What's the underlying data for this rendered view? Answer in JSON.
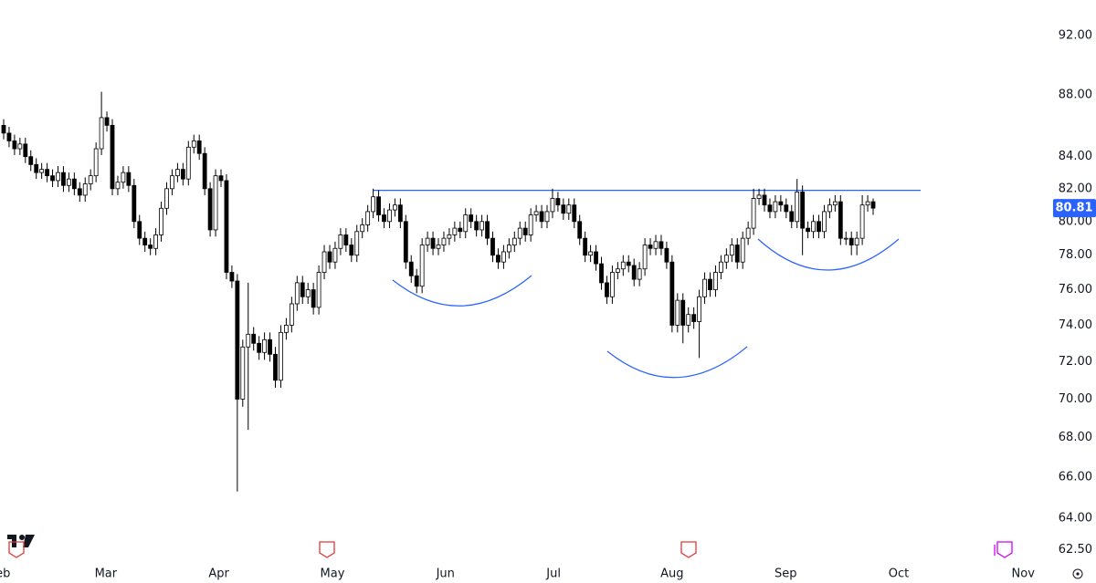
{
  "chart_data": {
    "type": "candlestick",
    "log_scale": true,
    "up_color": "#ffffff",
    "down_color": "#000000",
    "outline_color": "#000000",
    "line_color": "#2962ff",
    "tag_color": "#2962ff",
    "ylim": [
      62.1,
      94.5
    ],
    "yticks": [
      {
        "value": 92,
        "label": "92.00"
      },
      {
        "value": 88,
        "label": "88.00"
      },
      {
        "value": 84,
        "label": "84.00"
      },
      {
        "value": 82,
        "label": "82.00"
      },
      {
        "value": 80,
        "label": "80.00"
      },
      {
        "value": 78,
        "label": "78.00"
      },
      {
        "value": 76,
        "label": "76.00"
      },
      {
        "value": 74,
        "label": "74.00"
      },
      {
        "value": 72,
        "label": "72.00"
      },
      {
        "value": 70,
        "label": "70.00"
      },
      {
        "value": 68,
        "label": "68.00"
      },
      {
        "value": 66,
        "label": "66.00"
      },
      {
        "value": 64,
        "label": "64.00"
      },
      {
        "value": 62.5,
        "label": "62.50"
      }
    ],
    "xticks": [
      {
        "value": -0.7,
        "label": "Feb"
      },
      {
        "value": 18.8,
        "label": "Mar"
      },
      {
        "value": 39.6,
        "label": "Apr"
      },
      {
        "value": 60.5,
        "label": "May"
      },
      {
        "value": 81.3,
        "label": "Jun"
      },
      {
        "value": 101.2,
        "label": "Jul"
      },
      {
        "value": 123,
        "label": "Aug"
      },
      {
        "value": 143.9,
        "label": "Sep"
      },
      {
        "value": 164.7,
        "label": "Oct"
      },
      {
        "value": 187.6,
        "label": "Nov"
      }
    ],
    "resistance_level": 81.9,
    "open": [
      86,
      85.5,
      85,
      84.5,
      84.8,
      84,
      83.5,
      83,
      83.2,
      82.8,
      82.5,
      83,
      82.2,
      82.6,
      82,
      81.6,
      82.3,
      82.8,
      84.5,
      86.5,
      86,
      82,
      82.4,
      83,
      82.2,
      80,
      79,
      78.6,
      78.4,
      79.2,
      80.8,
      82,
      82.8,
      83.2,
      82.6,
      84.6,
      85,
      84.2,
      82,
      79.5,
      82.8,
      82.5,
      77,
      76.5,
      70,
      72.8,
      73.5,
      73,
      72.5,
      73.2,
      72.4,
      71,
      73.6,
      74,
      75.2,
      76.4,
      75.6,
      76,
      75,
      77,
      78.2,
      77.6,
      78.4,
      79.2,
      78.6,
      78,
      79.4,
      79.8,
      80.6,
      81.5,
      80.4,
      80,
      80.7,
      81,
      80,
      77.6,
      76.8,
      76.2,
      78.6,
      79,
      78.4,
      78.6,
      79,
      79.2,
      79.6,
      79.4,
      80.4,
      80,
      79.5,
      80,
      79,
      78,
      77.6,
      78.2,
      78.6,
      79,
      79.6,
      79.2,
      80.4,
      80.6,
      80,
      80.6,
      81.4,
      81,
      80.5,
      81,
      80,
      79,
      78,
      78.2,
      77.5,
      76.4,
      75.6,
      77,
      77.2,
      77.6,
      77.4,
      76.6,
      77.2,
      78.6,
      78.4,
      78.8,
      78.4,
      77.6,
      74,
      75.4,
      74,
      74.6,
      74.2,
      75.6,
      76.6,
      76,
      77,
      77.6,
      78,
      78.6,
      77.6,
      79,
      79.6,
      81.4,
      81.6,
      81,
      80.6,
      81.2,
      81,
      80.6,
      80,
      81.8,
      79.6,
      79.4,
      80,
      79.4,
      80.6,
      81,
      81.2,
      79,
      79,
      78.6,
      79,
      81,
      81.2
    ],
    "high": [
      86.4,
      85.9,
      85.4,
      85.2,
      85.2,
      84.4,
      83.9,
      83.6,
      83.6,
      83.2,
      83.4,
      83.4,
      83,
      83,
      82.4,
      82.7,
      83.2,
      84.9,
      88.2,
      86.9,
      86.4,
      82.8,
      83.4,
      83.4,
      82.6,
      80.4,
      79.4,
      79,
      79.6,
      81.2,
      82.4,
      83.2,
      83.6,
      83.6,
      85,
      85.4,
      85.4,
      84.6,
      82.4,
      83.2,
      83.2,
      82.9,
      77.4,
      76.9,
      73.2,
      76.4,
      73.9,
      73.4,
      73.6,
      73.6,
      72.8,
      74,
      74.4,
      75.6,
      76.8,
      76.8,
      76.4,
      76.4,
      77.4,
      78.6,
      78.6,
      78.8,
      79.6,
      79.6,
      79,
      79.8,
      80.2,
      81,
      82,
      81.9,
      80.8,
      81.1,
      81.4,
      81.4,
      80.4,
      78,
      77.2,
      79,
      79.4,
      79.4,
      79,
      79.4,
      79.6,
      80,
      80,
      80.8,
      80.8,
      80.4,
      80.4,
      80.4,
      79.4,
      78.4,
      78.6,
      79,
      79.4,
      80,
      80,
      80.8,
      81,
      81,
      81,
      82,
      81.8,
      81.4,
      81.4,
      81.4,
      80.4,
      79.4,
      78.6,
      78.6,
      77.9,
      76.8,
      77.4,
      77.6,
      78,
      78,
      77.8,
      77.6,
      79,
      79,
      79.2,
      79.2,
      78.8,
      78,
      75.8,
      75.8,
      75,
      75,
      76,
      77,
      77,
      77.4,
      78,
      78.4,
      79,
      79,
      79.4,
      80,
      82,
      82,
      82,
      81.4,
      81.6,
      81.6,
      81.4,
      81,
      82.6,
      82.2,
      80,
      80.4,
      80.4,
      81,
      81.4,
      81.6,
      81.6,
      79.4,
      79.4,
      79.4,
      81.6,
      81.6,
      81.4
    ],
    "low": [
      85.1,
      84.6,
      84.1,
      84.1,
      83.6,
      83.1,
      82.6,
      82.6,
      82.4,
      82.1,
      82.1,
      81.8,
      81.8,
      81.6,
      81.2,
      81.2,
      81.9,
      82.4,
      84.1,
      85.6,
      81.6,
      81.6,
      82,
      81.8,
      79.6,
      78.6,
      78.2,
      78,
      78,
      78.8,
      80.4,
      81.6,
      82.4,
      82.2,
      82.2,
      84.2,
      83.8,
      81.6,
      79.1,
      79.1,
      82.1,
      76.6,
      76.1,
      65.3,
      69.6,
      68.4,
      72.6,
      72.1,
      72.1,
      72,
      70.6,
      70.6,
      73.2,
      73.6,
      74.8,
      75.2,
      75.2,
      74.6,
      74.6,
      76.6,
      77.2,
      77.2,
      78,
      78.2,
      77.6,
      77.6,
      79,
      79.4,
      80.2,
      80,
      79.6,
      79.6,
      80.3,
      79.6,
      77.2,
      76.4,
      75.8,
      75.8,
      78.2,
      78,
      78,
      78.2,
      78.6,
      78.8,
      79,
      79,
      79.6,
      79.1,
      79.1,
      78.6,
      77.6,
      77.2,
      77.2,
      77.8,
      78.2,
      78.6,
      78.8,
      78.8,
      80,
      79.6,
      79.6,
      80.2,
      80.6,
      80.1,
      80.1,
      79.6,
      78.6,
      77.6,
      77.6,
      77.1,
      76,
      75.2,
      75.2,
      76.6,
      76.8,
      77,
      76.2,
      76.2,
      76.8,
      78,
      78,
      78,
      77.2,
      73.6,
      73.6,
      73,
      73.6,
      73.8,
      72.2,
      75.2,
      75.6,
      75.6,
      76.6,
      77.2,
      77.6,
      77.2,
      77.2,
      78.6,
      79.2,
      81,
      80.6,
      80.2,
      80.2,
      80.6,
      80.2,
      79.6,
      79.6,
      78,
      79,
      79,
      79,
      79,
      80.2,
      80.6,
      78.6,
      78.6,
      78,
      78,
      78.6,
      80.6,
      80.4
    ],
    "close": [
      85.5,
      85,
      84.5,
      84.8,
      84,
      83.5,
      83,
      83.2,
      82.8,
      82.5,
      83,
      82.2,
      82.6,
      82,
      81.6,
      82.3,
      82.8,
      84.5,
      86.5,
      86,
      82,
      82.4,
      83,
      82.2,
      80,
      79,
      78.6,
      78.4,
      79.2,
      80.8,
      82,
      82.8,
      83.2,
      82.6,
      84.6,
      85,
      84.2,
      82,
      79.5,
      82.8,
      82.5,
      77,
      76.5,
      70,
      72.8,
      73.5,
      73,
      72.5,
      73.2,
      72.4,
      71,
      73.6,
      74,
      75.2,
      76.4,
      75.6,
      76,
      75,
      77,
      78.2,
      77.6,
      78.4,
      79.2,
      78.6,
      78,
      79.4,
      79.8,
      80.6,
      81.5,
      80.4,
      80,
      80.7,
      81,
      80,
      77.6,
      76.8,
      76.2,
      78.6,
      79,
      78.4,
      78.6,
      79,
      79.2,
      79.6,
      79.4,
      80.4,
      80,
      79.5,
      80,
      79,
      78,
      77.6,
      78.2,
      78.6,
      79,
      79.6,
      79.2,
      80.4,
      80.6,
      80,
      80.6,
      81.4,
      81,
      80.5,
      81,
      80,
      79,
      78,
      78.2,
      77.5,
      76.4,
      75.6,
      77,
      77.2,
      77.6,
      77.4,
      76.6,
      77.2,
      78.6,
      78.4,
      78.8,
      78.4,
      77.6,
      74,
      75.4,
      74,
      74.6,
      74.2,
      75.6,
      76.6,
      76,
      77,
      77.6,
      78,
      78.6,
      77.6,
      79,
      79.6,
      81.4,
      81.6,
      81,
      80.6,
      81.2,
      81,
      80.6,
      80,
      81.8,
      79.6,
      79.4,
      80,
      79.4,
      80.6,
      81,
      81.2,
      79,
      79,
      78.6,
      79,
      81,
      81.2,
      80.81
    ]
  }
}
